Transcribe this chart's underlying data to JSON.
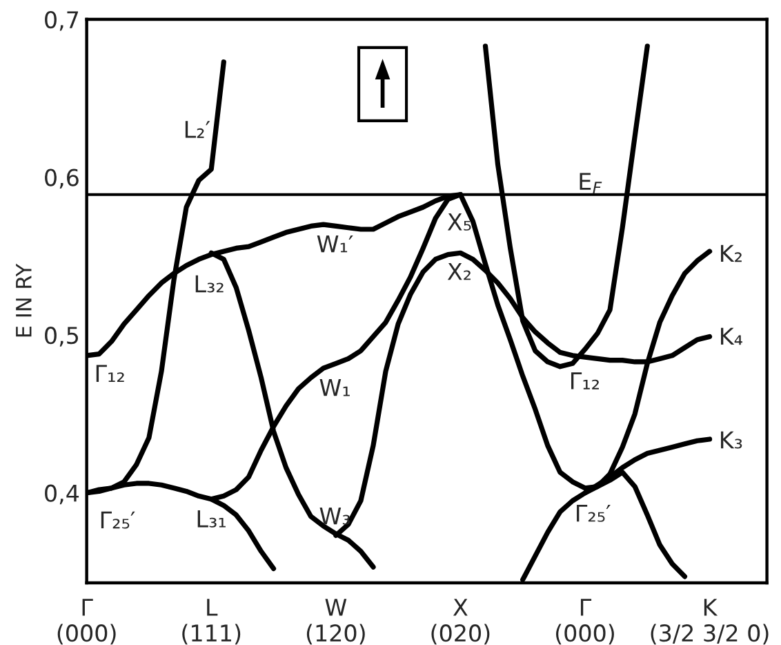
{
  "chart_data": {
    "type": "line",
    "ylabel": "E IN RY",
    "categories": [
      "Γ\n(000)",
      null,
      null,
      null,
      null,
      null,
      null,
      null,
      null,
      null,
      "L\n(111)",
      null,
      null,
      null,
      null,
      null,
      null,
      null,
      null,
      null,
      "W\n(120)",
      null,
      null,
      null,
      null,
      null,
      null,
      null,
      null,
      null,
      "X\n(020)",
      null,
      null,
      null,
      null,
      null,
      null,
      null,
      null,
      null,
      "Γ\n(000)",
      null,
      null,
      null,
      null,
      null,
      null,
      null,
      null,
      null,
      "K\n(3/2 3/2 0)",
      null,
      null,
      null,
      null
    ],
    "ylim": [
      0.343,
      0.7
    ],
    "yticks": [
      {
        "value": 0.4,
        "label": "0,4"
      },
      {
        "value": 0.5,
        "label": "0,5"
      },
      {
        "value": 0.6,
        "label": "0,6"
      },
      {
        "value": 0.7,
        "label": "0,7"
      }
    ],
    "grid": false,
    "legend": false,
    "marker": "none",
    "line_style": "solid",
    "series": [
      {
        "color": "#000000",
        "values": [
          0.487,
          0.488,
          0.496,
          0.507,
          0.516,
          0.525,
          0.533,
          0.539,
          0.544,
          0.548,
          0.551,
          0.553,
          0.555,
          0.556,
          0.559,
          0.562,
          0.565,
          0.567,
          0.569,
          0.57,
          0.569,
          0.568,
          0.567,
          0.567,
          0.571,
          0.575,
          0.578,
          0.581,
          0.585,
          0.588,
          0.589,
          null,
          null,
          null,
          null,
          null,
          null,
          null,
          null,
          null,
          null,
          null,
          null,
          null,
          null,
          null,
          null,
          null,
          null,
          null,
          null,
          null,
          null,
          null,
          null
        ]
      },
      {
        "color": "#000000",
        "values": [
          0.4,
          0.401,
          0.403,
          0.407,
          0.418,
          0.435,
          0.477,
          0.535,
          0.581,
          0.598,
          0.605,
          0.673,
          null,
          null,
          null,
          null,
          null,
          null,
          null,
          null,
          null,
          null,
          null,
          null,
          null,
          null,
          null,
          null,
          null,
          null,
          null,
          null,
          null,
          null,
          null,
          null,
          null,
          null,
          null,
          null,
          null,
          null,
          null,
          null,
          null,
          null,
          null,
          null,
          null,
          null,
          null,
          null,
          null,
          null,
          null
        ]
      },
      {
        "color": "#000000",
        "values": [
          0.4,
          0.402,
          0.403,
          0.405,
          0.406,
          0.406,
          0.405,
          0.403,
          0.401,
          0.398,
          0.396,
          0.398,
          0.402,
          0.41,
          0.427,
          0.442,
          0.455,
          0.466,
          0.473,
          0.479,
          0.482,
          0.485,
          0.49,
          0.499,
          0.508,
          0.522,
          0.537,
          0.555,
          0.574,
          0.586,
          0.589,
          0.572,
          0.545,
          0.519,
          0.497,
          0.474,
          0.453,
          0.43,
          0.413,
          0.407,
          0.403,
          0.404,
          0.412,
          0.429,
          0.45,
          0.482,
          0.508,
          0.525,
          0.539,
          0.547,
          0.553,
          null,
          null,
          null,
          null
        ]
      },
      {
        "color": "#000000",
        "values": [
          null,
          null,
          null,
          null,
          null,
          null,
          null,
          null,
          null,
          null,
          0.552,
          0.548,
          0.53,
          0.503,
          0.473,
          0.439,
          0.416,
          0.399,
          0.385,
          0.379,
          0.374,
          0.37,
          0.363,
          0.353,
          null,
          null,
          null,
          null,
          null,
          null,
          null,
          null,
          null,
          null,
          null,
          null,
          null,
          null,
          null,
          null,
          null,
          null,
          null,
          null,
          null,
          null,
          null,
          null,
          null,
          null,
          null,
          null,
          null,
          null,
          null
        ]
      },
      {
        "color": "#000000",
        "values": [
          null,
          null,
          null,
          null,
          null,
          null,
          null,
          null,
          null,
          null,
          null,
          null,
          null,
          null,
          null,
          null,
          null,
          null,
          null,
          null,
          0.373,
          0.38,
          0.395,
          0.43,
          0.477,
          0.507,
          0.526,
          0.54,
          0.548,
          0.551,
          0.552,
          0.548,
          0.541,
          0.533,
          0.523,
          0.511,
          0.502,
          0.495,
          0.489,
          0.487,
          0.486,
          0.485,
          0.484,
          0.484,
          0.483,
          0.483,
          0.485,
          0.487,
          0.492,
          0.497,
          0.499,
          null,
          null,
          null,
          null
        ]
      },
      {
        "color": "#000000",
        "values": [
          null,
          null,
          null,
          null,
          null,
          null,
          null,
          null,
          null,
          null,
          null,
          null,
          null,
          null,
          null,
          null,
          null,
          null,
          null,
          null,
          null,
          null,
          null,
          null,
          null,
          null,
          null,
          null,
          null,
          null,
          null,
          null,
          0.683,
          0.608,
          0.555,
          0.509,
          0.49,
          0.483,
          0.48,
          0.482,
          0.491,
          0.501,
          0.516,
          0.568,
          0.626,
          0.683,
          null,
          null,
          null,
          null,
          null,
          null,
          null,
          null,
          null
        ]
      },
      {
        "color": "#000000",
        "values": [
          null,
          null,
          null,
          null,
          null,
          null,
          null,
          null,
          null,
          null,
          null,
          null,
          null,
          null,
          null,
          null,
          null,
          null,
          null,
          null,
          null,
          null,
          null,
          null,
          null,
          null,
          null,
          null,
          null,
          null,
          null,
          null,
          null,
          null,
          null,
          0.345,
          0.36,
          0.375,
          0.388,
          0.395,
          0.4,
          0.404,
          0.408,
          0.413,
          0.404,
          0.386,
          0.367,
          0.355,
          0.347,
          null,
          null,
          null,
          null,
          null,
          null
        ]
      },
      {
        "color": "#000000",
        "values": [
          null,
          null,
          null,
          null,
          null,
          null,
          null,
          null,
          null,
          null,
          null,
          null,
          null,
          null,
          null,
          null,
          null,
          null,
          null,
          null,
          null,
          null,
          null,
          null,
          null,
          null,
          null,
          null,
          null,
          null,
          null,
          null,
          null,
          null,
          null,
          null,
          null,
          null,
          null,
          null,
          0.4,
          0.405,
          0.41,
          0.416,
          0.421,
          0.425,
          0.427,
          0.429,
          0.431,
          0.433,
          0.434,
          null,
          null,
          null,
          null
        ]
      },
      {
        "color": "#000000",
        "values": [
          null,
          null,
          null,
          null,
          null,
          null,
          null,
          null,
          null,
          null,
          0.396,
          0.392,
          0.386,
          0.376,
          0.363,
          0.352,
          null,
          null,
          null,
          null,
          null,
          null,
          null,
          null,
          null,
          null,
          null,
          null,
          null,
          null,
          null,
          null,
          null,
          null,
          null,
          null,
          null,
          null,
          null,
          null,
          null,
          null,
          null,
          null,
          null,
          null,
          null,
          null,
          null,
          null,
          null,
          null,
          null,
          null,
          null
        ]
      }
    ],
    "ref_lines": [
      {
        "axis": "y",
        "value": 0.589,
        "label": "E$_{F}$",
        "color": "#000000"
      }
    ],
    "annotations": [
      "Γ₁₂",
      "L₂′",
      "L₃₂",
      "W₁′",
      "X₅",
      "X₂",
      "W₁",
      "W₃",
      "L₃₁",
      "Γ₂₅′",
      "Γ₁₂",
      "Γ₂₅′",
      "K₂",
      "K₄",
      "K₃"
    ]
  }
}
